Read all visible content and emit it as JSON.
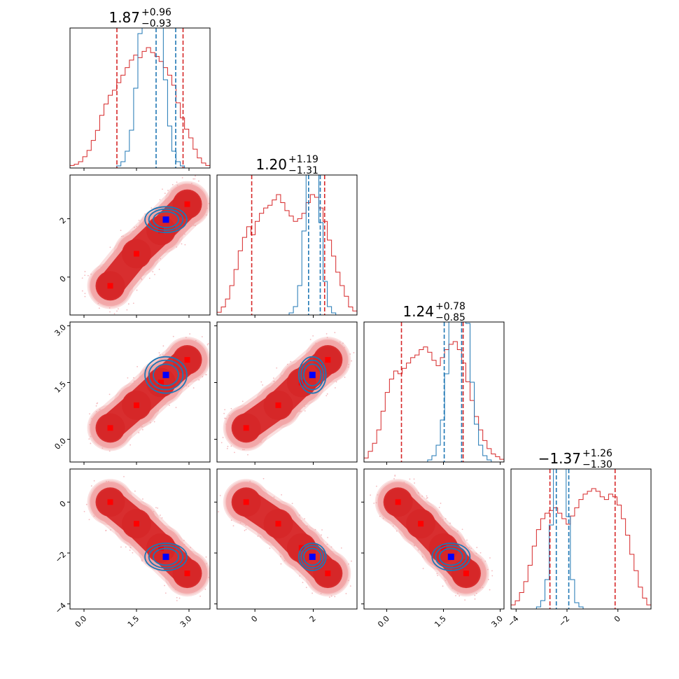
{
  "colors": {
    "prior": "#d62728",
    "posterior": "#1f77b4",
    "prior_fill_light": "#f2a6a7",
    "prior_fill_dark": "#d62728",
    "prior_marker": "#ff0000",
    "posterior_marker": "#0000ff"
  },
  "chart_data": {
    "type": "corner",
    "title": "",
    "grid": false,
    "legend": "none",
    "parameters": [
      {
        "range": [
          -0.4,
          3.6
        ],
        "ticks": [
          0.0,
          1.5,
          3.0
        ],
        "tick_labels": [
          "0.0",
          "1.5",
          "3.0"
        ],
        "summary": {
          "median": "1.87",
          "plus": "+0.96",
          "minus": "−0.93"
        },
        "prior_quantiles": [
          0.94,
          2.83
        ],
        "posterior_quantiles": [
          2.06,
          2.62
        ]
      },
      {
        "range": [
          -1.3,
          3.5
        ],
        "ticks": [
          0,
          2
        ],
        "tick_labels": [
          "0",
          "2"
        ],
        "summary": {
          "median": "1.20",
          "plus": "+1.19",
          "minus": "−1.31"
        },
        "prior_quantiles": [
          -0.11,
          2.39
        ],
        "posterior_quantiles": [
          1.84,
          2.24
        ]
      },
      {
        "range": [
          -0.6,
          3.1
        ],
        "ticks": [
          0.0,
          1.5,
          3.0
        ],
        "tick_labels": [
          "0.0",
          "1.5",
          "3.0"
        ],
        "summary": {
          "median": "1.24",
          "plus": "+0.78",
          "minus": "−0.85"
        },
        "prior_quantiles": [
          0.39,
          2.02
        ],
        "posterior_quantiles": [
          1.52,
          1.98
        ]
      },
      {
        "range": [
          -4.2,
          1.3
        ],
        "ticks": [
          -4,
          -2,
          0
        ],
        "tick_labels": [
          "−4",
          "−2",
          "0"
        ],
        "summary": {
          "median": "−1.37",
          "plus": "+1.26",
          "minus": "−1.30"
        },
        "prior_quantiles": [
          -2.67,
          -0.11
        ],
        "posterior_quantiles": [
          -2.42,
          -1.93
        ]
      }
    ],
    "prior_modes": [
      [
        0.75,
        -0.3,
        0.3,
        0.0
      ],
      [
        1.5,
        0.8,
        0.9,
        -0.85
      ],
      [
        2.2,
        1.6,
        1.5,
        -1.8
      ],
      [
        2.95,
        2.5,
        2.1,
        -2.8
      ]
    ],
    "posterior_truth": [
      2.34,
      1.97,
      1.7,
      -2.15
    ],
    "prior_histograms": [
      [
        2,
        3,
        5,
        9,
        14,
        22,
        30,
        42,
        51,
        58,
        62,
        68,
        74,
        80,
        86,
        90,
        88,
        93,
        96,
        92,
        89,
        85,
        80,
        74,
        66,
        52,
        40,
        31,
        24,
        15,
        8,
        4,
        2
      ],
      [
        2,
        6,
        12,
        22,
        34,
        48,
        58,
        66,
        60,
        70,
        76,
        80,
        82,
        86,
        90,
        84,
        78,
        74,
        70,
        72,
        76,
        84,
        90,
        88,
        80,
        70,
        56,
        44,
        32,
        22,
        14,
        6,
        3
      ],
      [
        3,
        8,
        14,
        24,
        38,
        52,
        62,
        68,
        66,
        70,
        74,
        78,
        80,
        84,
        86,
        82,
        76,
        72,
        78,
        84,
        88,
        90,
        84,
        74,
        60,
        46,
        34,
        24,
        16,
        10,
        6,
        4,
        2
      ],
      [
        3,
        6,
        12,
        20,
        32,
        46,
        58,
        66,
        70,
        72,
        74,
        70,
        66,
        62,
        68,
        74,
        80,
        84,
        86,
        88,
        86,
        82,
        80,
        84,
        82,
        76,
        66,
        54,
        40,
        28,
        16,
        8,
        3
      ]
    ],
    "posterior_histograms": [
      [
        0,
        0,
        0,
        0,
        0,
        0,
        0,
        0,
        0,
        0,
        0,
        1,
        3,
        8,
        18,
        38,
        64,
        88,
        100,
        100,
        90,
        70,
        42,
        20,
        8,
        3,
        1,
        0,
        0,
        0,
        0,
        0,
        0
      ],
      [
        0,
        0,
        0,
        0,
        0,
        0,
        0,
        0,
        0,
        0,
        0,
        0,
        0,
        0,
        0,
        0,
        0,
        1,
        4,
        14,
        40,
        82,
        100,
        86,
        44,
        16,
        4,
        1,
        0,
        0,
        0,
        0,
        0
      ],
      [
        0,
        0,
        0,
        0,
        0,
        0,
        0,
        0,
        0,
        0,
        0,
        0,
        0,
        0,
        0,
        1,
        3,
        8,
        20,
        42,
        70,
        92,
        100,
        92,
        66,
        38,
        18,
        8,
        3,
        1,
        0,
        0,
        0
      ],
      [
        0,
        0,
        0,
        0,
        0,
        0,
        1,
        4,
        14,
        40,
        82,
        100,
        84,
        44,
        14,
        3,
        1,
        0,
        0,
        0,
        0,
        0,
        0,
        0,
        0,
        0,
        0,
        0,
        0,
        0,
        0,
        0,
        0
      ]
    ]
  }
}
